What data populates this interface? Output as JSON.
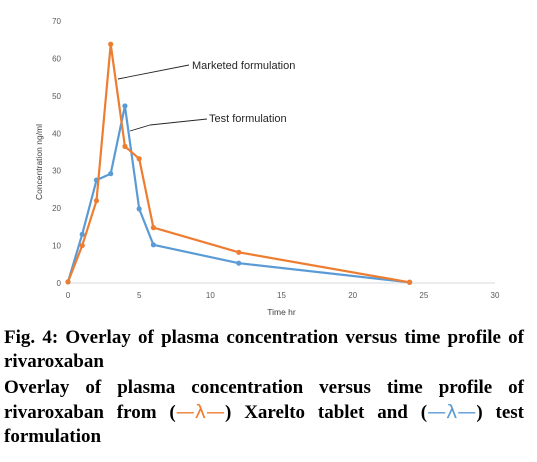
{
  "chart_data": {
    "type": "line",
    "title": "",
    "xlabel": "Time hr",
    "ylabel": "Concentration ng/ml",
    "xlim": [
      0,
      30
    ],
    "ylim": [
      0,
      70
    ],
    "xticks": [
      0,
      5,
      10,
      15,
      20,
      25,
      30
    ],
    "yticks": [
      0,
      10,
      20,
      30,
      40,
      50,
      60,
      70
    ],
    "grid": false,
    "series": [
      {
        "name": "Marketed formulation",
        "color": "#ED7D31",
        "x": [
          0,
          1,
          2,
          3,
          4,
          5,
          6,
          12,
          24
        ],
        "y": [
          0.3,
          10,
          22,
          63.8,
          36.5,
          33.2,
          14.8,
          8.2,
          0.2
        ]
      },
      {
        "name": "Test formulation",
        "color": "#5B9BD5",
        "x": [
          0,
          1,
          2,
          3,
          4,
          5,
          6,
          12,
          24
        ],
        "y": [
          0.3,
          13,
          27.5,
          29.2,
          47.3,
          19.8,
          10.2,
          5.3,
          0.2
        ]
      }
    ],
    "annotations": [
      {
        "text": "Marketed formulation",
        "series": 0
      },
      {
        "text": "Test formulation",
        "series": 1
      }
    ]
  },
  "caption": {
    "line1": "Fig. 4: Overlay of plasma concentration versus time profile of rivaroxaban",
    "line2_part1": "Overlay of plasma concentration versus time profile of rivaroxaban from (",
    "legend_glyph_marketed": "—λ—",
    "line2_part2": ") Xarelto tablet and (",
    "legend_glyph_test": "—λ—",
    "line2_part3": ") test formulation"
  }
}
